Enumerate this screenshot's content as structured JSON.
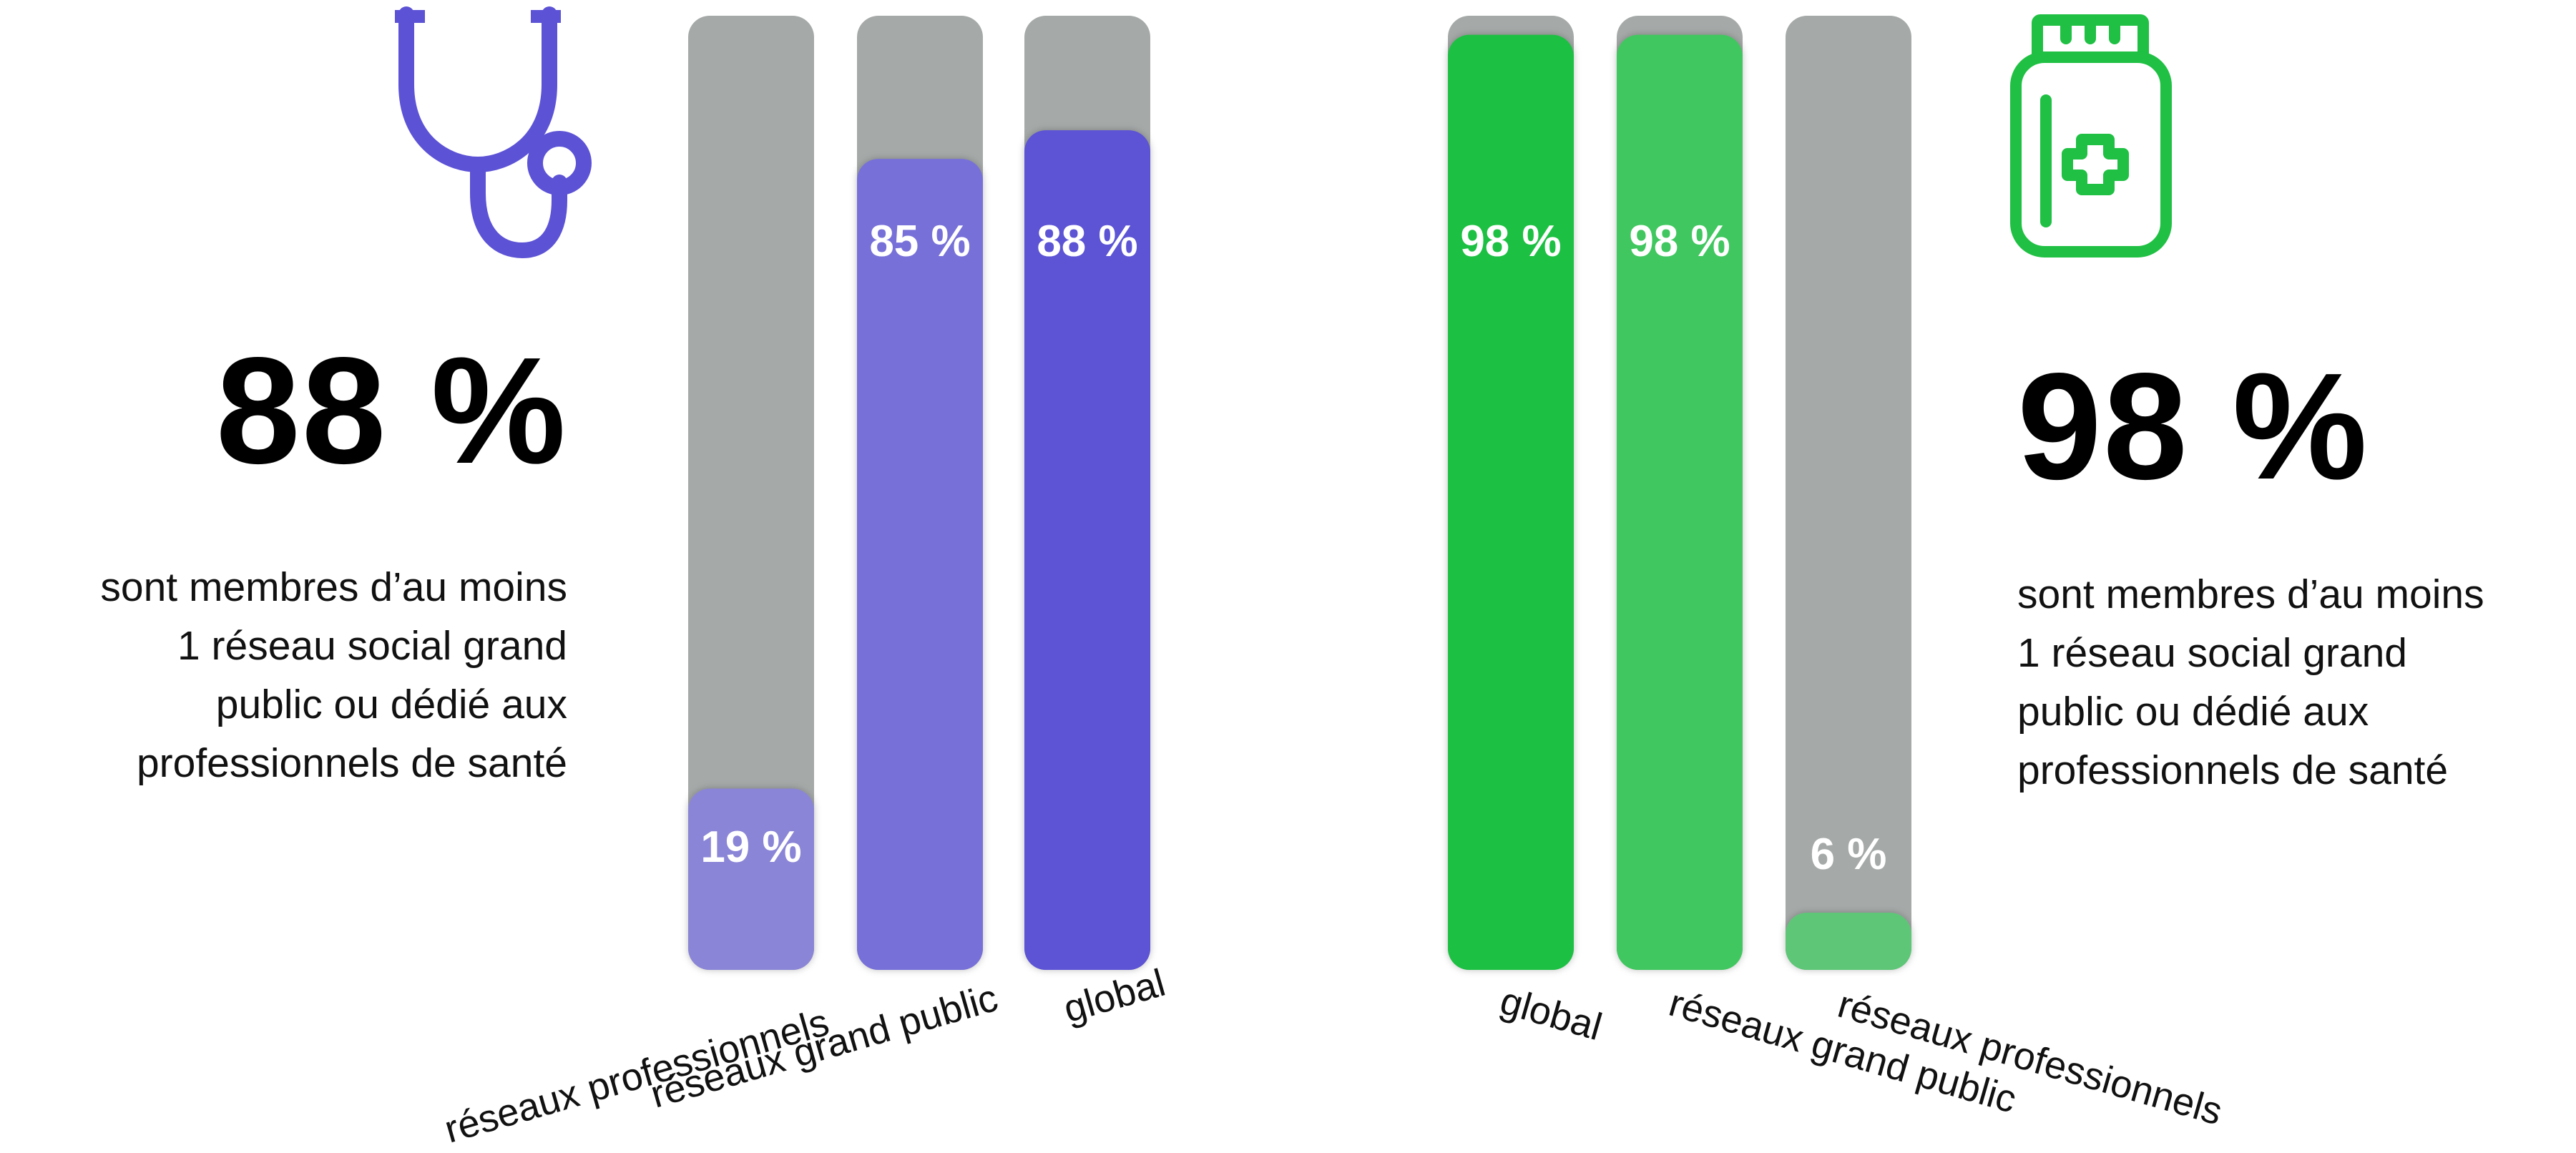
{
  "colors": {
    "purple": "#5c52d5",
    "purple_mid": "#7770d8",
    "purple_light": "#8a85d6",
    "green": "#1fc043",
    "green_mid": "#40c75e",
    "green_light": "#5dc677",
    "track": "#a5a9a8"
  },
  "left_panel": {
    "icon": "stethoscope-icon",
    "big_value": "88 %",
    "description_lines": [
      "sont membres d’au moins",
      "1 réseau social grand",
      "public ou dédié aux",
      "professionnels de santé"
    ]
  },
  "right_panel": {
    "icon": "medicine-jar-icon",
    "big_value": "98 %",
    "description_lines": [
      "sont membres d’au moins",
      "1 réseau social grand",
      "public ou dédié aux",
      "professionnels de santé"
    ]
  },
  "chart_data": [
    {
      "type": "bar",
      "categories": [
        "réseaux professionnels",
        "réseaux grand public",
        "global"
      ],
      "values": [
        19,
        85,
        88
      ],
      "labels": [
        "19 %",
        "85 %",
        "88 %"
      ],
      "ylim": [
        0,
        100
      ],
      "colors": [
        "#8a85d6",
        "#7770d8",
        "#5c52d5"
      ],
      "grid": false
    },
    {
      "type": "bar",
      "categories": [
        "global",
        "réseaux grand public",
        "réseaux professionnels"
      ],
      "values": [
        98,
        98,
        6
      ],
      "labels": [
        "98 %",
        "98 %",
        "6 %"
      ],
      "ylim": [
        0,
        100
      ],
      "colors": [
        "#1fc043",
        "#40c75e",
        "#5dc677"
      ],
      "grid": false
    }
  ]
}
